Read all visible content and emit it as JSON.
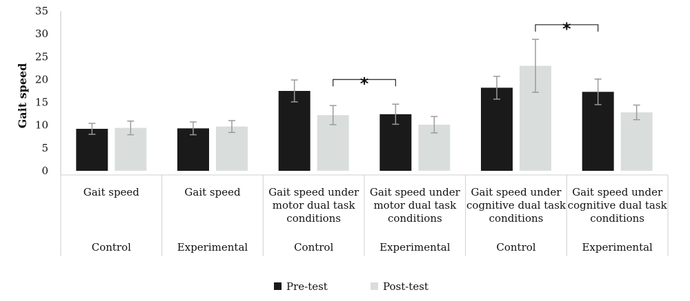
{
  "chart_data": {
    "type": "bar",
    "ylabel": "Gait speed",
    "ylim": [
      0,
      35
    ],
    "yticks": [
      "0",
      "5",
      "10",
      "15",
      "20",
      "25",
      "30",
      "35"
    ],
    "grid": false,
    "legend_position": "bottom-center",
    "categories": [
      {
        "label": "Gait speed",
        "group": "Control"
      },
      {
        "label": "Gait speed",
        "group": "Experimental"
      },
      {
        "label": "Gait speed under motor dual task conditions",
        "group": "Control"
      },
      {
        "label": "Gait speed under motor dual task conditions",
        "group": "Experimental"
      },
      {
        "label": "Gait speed under cognitive dual task conditions",
        "group": "Control"
      },
      {
        "label": "Gait speed under cognitive dual task conditions",
        "group": "Experimental"
      }
    ],
    "category_lines": [
      [
        "Gait speed"
      ],
      [
        "Gait speed"
      ],
      [
        "Gait speed under",
        "motor dual task",
        "conditions"
      ],
      [
        "Gait speed under",
        "motor dual task",
        "conditions"
      ],
      [
        "Gait speed under",
        "cognitive dual task",
        "conditions"
      ],
      [
        "Gait speed under",
        "cognitive dual task",
        "conditions"
      ]
    ],
    "series": [
      {
        "name": "Pre-test",
        "color": "#1a1a1a",
        "values": [
          9.2,
          9.3,
          17.5,
          12.4,
          18.2,
          17.3
        ],
        "errors": [
          1.2,
          1.4,
          2.4,
          2.2,
          2.5,
          2.8
        ]
      },
      {
        "name": "Post-test",
        "color": "#d9dedc",
        "values": [
          9.4,
          9.7,
          12.2,
          10.1,
          23.0,
          12.8
        ],
        "errors": [
          1.5,
          1.3,
          2.1,
          1.8,
          5.8,
          1.6
        ]
      }
    ],
    "significance": [
      {
        "label": "*",
        "from_bar": [
          1,
          2
        ],
        "to_bar": [
          0,
          3
        ],
        "y": 20.0
      },
      {
        "label": "*",
        "from_bar": [
          1,
          4
        ],
        "to_bar": [
          0,
          5
        ],
        "y": 32.0
      }
    ],
    "error_bar_color": "#9a9a9a"
  }
}
